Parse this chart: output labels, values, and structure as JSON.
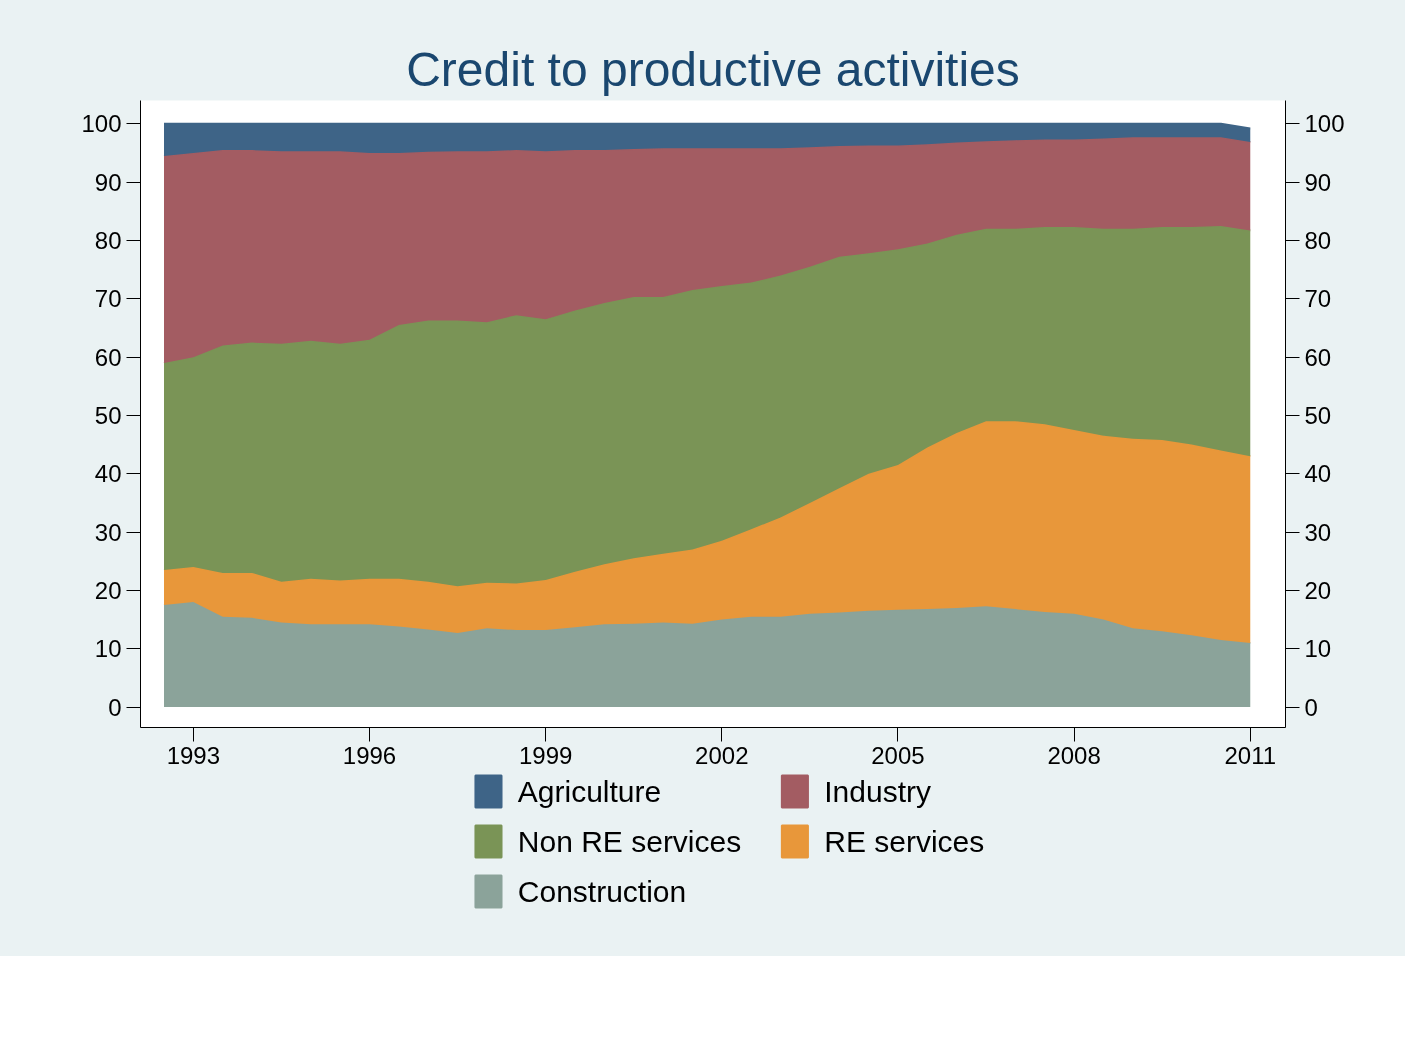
{
  "chart_data": {
    "type": "area",
    "title": "Credit to productive activities",
    "stacked": true,
    "x": [
      1992.5,
      1993,
      1993.5,
      1994,
      1994.5,
      1995,
      1995.5,
      1996,
      1996.5,
      1997,
      1997.5,
      1998,
      1998.5,
      1999,
      1999.5,
      2000,
      2000.5,
      2001,
      2001.5,
      2002,
      2002.5,
      2003,
      2003.5,
      2004,
      2004.5,
      2005,
      2005.5,
      2006,
      2006.5,
      2007,
      2007.5,
      2008,
      2008.5,
      2009,
      2009.5,
      2010,
      2010.5,
      2011
    ],
    "series": [
      {
        "name": "Construction",
        "color": "#8ba39a",
        "values": [
          17.5,
          18,
          15.5,
          15.3,
          14.5,
          14.2,
          14.2,
          14.2,
          13.8,
          13.3,
          12.7,
          13.5,
          13.2,
          13.2,
          13.7,
          14.2,
          14.3,
          14.5,
          14.3,
          15,
          15.5,
          15.5,
          16,
          16.2,
          16.5,
          16.7,
          16.8,
          17,
          17.3,
          16.8,
          16.3,
          16,
          15,
          13.5,
          13,
          12.3,
          11.5,
          11
        ]
      },
      {
        "name": "RE services",
        "color": "#e8973a",
        "values": [
          6,
          6,
          7.5,
          7.7,
          7,
          7.8,
          7.5,
          7.8,
          8.2,
          8.2,
          8,
          7.8,
          8,
          8.6,
          9.5,
          10.3,
          11.2,
          11.8,
          12.7,
          13.5,
          15,
          17,
          19,
          21.3,
          23.5,
          24.8,
          27.7,
          30,
          31.7,
          32.2,
          32.2,
          31.5,
          31.5,
          32.5,
          32.8,
          32.7,
          32.5,
          32
        ]
      },
      {
        "name": "Non RE services",
        "color": "#7a9456",
        "values": [
          35.5,
          36,
          39,
          39.5,
          40.8,
          40.8,
          40.6,
          41,
          43.5,
          44.8,
          45.6,
          44.7,
          46,
          44.7,
          44.8,
          44.8,
          44.8,
          44,
          44.5,
          43.7,
          42.3,
          41.5,
          40.5,
          39.7,
          37.8,
          37,
          35,
          34,
          33,
          33,
          33.8,
          34.8,
          35.5,
          36,
          36.5,
          37.3,
          38.5,
          38.7
        ]
      },
      {
        "name": "Industry",
        "color": "#a35c62",
        "values": [
          35.5,
          35,
          33.5,
          33,
          33,
          32.5,
          33,
          32,
          29.5,
          28.9,
          29,
          29.3,
          28.3,
          28.8,
          27.5,
          26.2,
          25.4,
          25.5,
          24.3,
          23.6,
          23,
          21.8,
          20.5,
          19,
          18.5,
          17.8,
          17,
          15.8,
          15,
          15.2,
          15,
          15,
          15.5,
          15.7,
          15.4,
          15.4,
          15.2,
          15.2
        ]
      },
      {
        "name": "Agriculture",
        "color": "#3e6487",
        "values": [
          5.5,
          5,
          4.5,
          4.5,
          4.7,
          4.7,
          4.7,
          5,
          5,
          4.8,
          4.7,
          4.7,
          4.5,
          4.7,
          4.5,
          4.5,
          4.3,
          4.2,
          4.2,
          4.2,
          4.2,
          4.2,
          4,
          3.8,
          3.7,
          3.7,
          3.5,
          3.2,
          3,
          2.8,
          2.7,
          2.7,
          2.5,
          2.3,
          2.3,
          2.3,
          2.3,
          2.3
        ]
      }
    ],
    "xlim": [
      1992.1,
      2011.6
    ],
    "xticks": [
      1993,
      1996,
      1999,
      2002,
      2005,
      2008,
      2011
    ],
    "ylim": [
      -3.5,
      104
    ],
    "yticks": [
      0,
      10,
      20,
      30,
      40,
      50,
      60,
      70,
      80,
      90,
      100
    ],
    "y2lim": [
      -3.5,
      104
    ],
    "y2ticks": [
      0,
      10,
      20,
      30,
      40,
      50,
      60,
      70,
      80,
      90,
      100
    ],
    "grid": false,
    "legend": "bottom"
  }
}
